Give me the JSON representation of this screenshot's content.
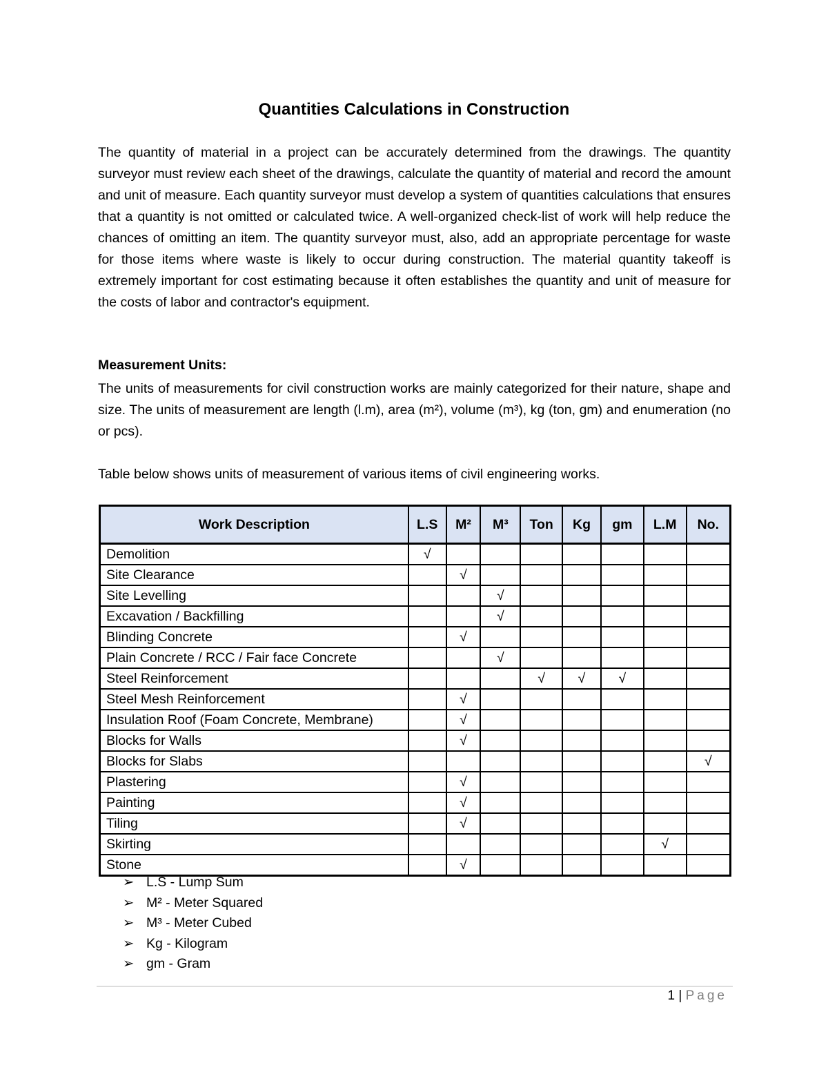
{
  "title": "Quantities Calculations in Construction",
  "paragraph1": "The quantity of material in a project can be accurately determined from the drawings. The quantity surveyor must review each sheet of the drawings, calculate the quantity of material and record the amount and unit of measure. Each quantity surveyor must develop a system of quantities calculations that ensures that a quantity is not omitted or calculated twice. A well-organized check-list of work will help reduce the chances of omitting an item. The quantity surveyor must, also, add an appropriate percentage for waste for those items where waste is likely to occur during construction. The material quantity takeoff is extremely important for cost estimating because it often establishes the quantity and unit of measure for the costs of labor and contractor's equipment.",
  "heading": "Measurement Units:",
  "paragraph2": "The units of measurements for civil construction works are mainly categorized for their nature, shape and size. The units of measurement are length (l.m), area (m²), volume (m³), kg (ton, gm) and enumeration (no or pcs).",
  "paragraph3": "Table below shows units of measurement of various items of civil engineering works.",
  "table": {
    "headers": [
      "Work Description",
      "L.S",
      "M²",
      "M³",
      "Ton",
      "Kg",
      "gm",
      "L.M",
      "No."
    ],
    "check": "√",
    "rows": [
      {
        "name": "Demolition",
        "checks": [
          0
        ]
      },
      {
        "name": "Site Clearance",
        "checks": [
          1
        ]
      },
      {
        "name": "Site Levelling",
        "checks": [
          2
        ]
      },
      {
        "name": "Excavation / Backfilling",
        "checks": [
          2
        ]
      },
      {
        "name": "Blinding Concrete",
        "checks": [
          1
        ]
      },
      {
        "name": "Plain Concrete / RCC / Fair face Concrete",
        "checks": [
          2
        ]
      },
      {
        "name": "Steel Reinforcement",
        "checks": [
          3,
          4,
          5
        ]
      },
      {
        "name": "Steel Mesh Reinforcement",
        "checks": [
          1
        ]
      },
      {
        "name": "Insulation Roof (Foam Concrete, Membrane)",
        "checks": [
          1
        ]
      },
      {
        "name": "Blocks for Walls",
        "checks": [
          1
        ]
      },
      {
        "name": "Blocks for Slabs",
        "checks": [
          7
        ]
      },
      {
        "name": "Plastering",
        "checks": [
          1
        ]
      },
      {
        "name": "Painting",
        "checks": [
          1
        ]
      },
      {
        "name": "Tiling",
        "checks": [
          1
        ]
      },
      {
        "name": "Skirting",
        "checks": [
          6
        ]
      },
      {
        "name": "Stone",
        "checks": [
          1
        ]
      }
    ]
  },
  "legend": [
    "L.S - Lump Sum",
    "M² - Meter Squared",
    "M³ - Meter Cubed",
    "Kg - Kilogram",
    "gm - Gram"
  ],
  "footer": {
    "page_number": "1",
    "separator": "|",
    "page_label": "Page"
  },
  "colors": {
    "header_bg": "#dae3f3"
  }
}
